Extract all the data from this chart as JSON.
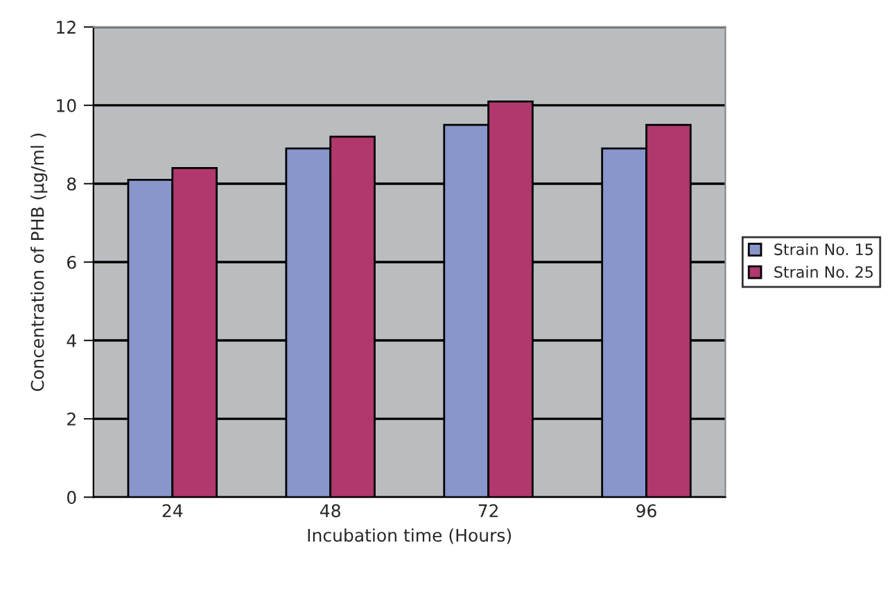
{
  "chart_data": {
    "type": "bar",
    "xlabel": "Incubation time (Hours)",
    "ylabel": "Concentration of PHB (µg/ml )",
    "categories": [
      "24",
      "48",
      "72",
      "96"
    ],
    "series": [
      {
        "name": "Strain No. 15",
        "color": "#8896cc",
        "values": [
          8.1,
          8.9,
          9.5,
          8.9
        ]
      },
      {
        "name": "Strain No. 25",
        "color": "#b0386c",
        "values": [
          8.4,
          9.2,
          10.1,
          9.5
        ]
      }
    ],
    "ylim": [
      0,
      12
    ],
    "yticks": [
      0,
      2,
      4,
      6,
      8,
      10,
      12
    ],
    "grid": "y",
    "legend": "right"
  }
}
